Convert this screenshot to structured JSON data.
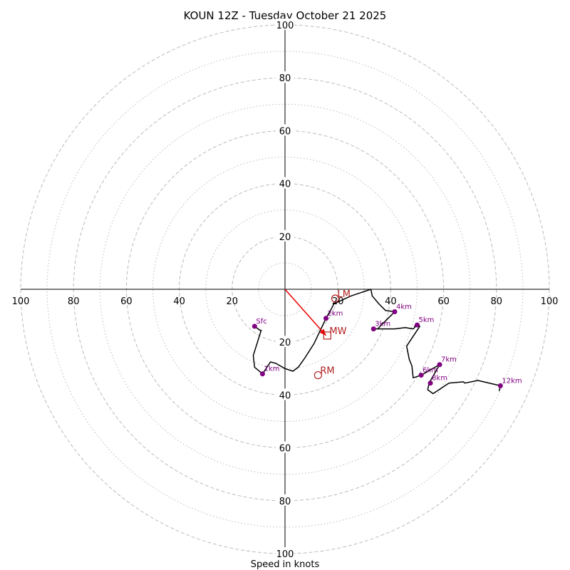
{
  "chart_data": {
    "type": "hodograph",
    "title": "KOUN 12Z - Tuesday October 21 2025",
    "xlabel": "Speed in knots",
    "units": "knots",
    "max_speed": 100,
    "ring_major": [
      20,
      40,
      60,
      80,
      100
    ],
    "ring_minor": [
      10,
      30,
      50,
      70,
      90
    ],
    "x_ticks": [
      "100",
      "80",
      "60",
      "40",
      "20",
      "20",
      "40",
      "60",
      "80",
      "100"
    ],
    "x_tick_values": [
      -100,
      -80,
      -60,
      -40,
      -20,
      20,
      40,
      60,
      80,
      100
    ],
    "y_ticks": [
      "100",
      "80",
      "60",
      "40",
      "20",
      "20",
      "40",
      "60",
      "80",
      "100"
    ],
    "y_tick_values": [
      100,
      80,
      60,
      40,
      20,
      -20,
      -40,
      -60,
      -80,
      -100
    ],
    "profile": {
      "color": "#000000",
      "u": [
        -11.5,
        -9.5,
        -9.0,
        -12.0,
        -11.5,
        -8.5,
        -5.5,
        -3.5,
        0.0,
        3.0,
        5.0,
        7.5,
        11.0,
        15.5,
        17.5,
        18.5,
        25.0,
        32.5,
        33.0,
        35.5,
        38.0,
        41.5,
        38.5,
        35.0,
        33.5,
        35.0,
        41.5,
        45.5,
        48.5,
        50.0,
        49.0,
        51.0,
        46.0,
        47.0,
        48.0,
        48.5,
        51.5,
        55.0,
        58.5,
        54.5,
        54.0,
        56.0,
        62.0,
        67.5,
        68.0,
        73.0,
        81.5,
        81.0
      ],
      "v": [
        -14.0,
        -15.5,
        -15.5,
        -25.0,
        -29.5,
        -32.0,
        -27.5,
        -28.0,
        -30.0,
        -31.0,
        -29.5,
        -26.0,
        -20.5,
        -11.0,
        -7.5,
        -5.5,
        -2.5,
        0.0,
        -2.5,
        -5.5,
        -8.0,
        -8.5,
        -11.5,
        -15.0,
        -15.0,
        -15.0,
        -15.0,
        -14.5,
        -15.0,
        -13.5,
        -14.0,
        -14.0,
        -21.5,
        -26.5,
        -29.0,
        -33.5,
        -32.5,
        -30.5,
        -28.5,
        -35.5,
        -38.0,
        -39.5,
        -35.5,
        -35.0,
        -35.5,
        -34.5,
        -36.5,
        -38.5
      ]
    },
    "height_markers": [
      {
        "label": "Sfc",
        "u": -11.5,
        "v": -14.0
      },
      {
        "label": "1km",
        "u": -8.5,
        "v": -32.0
      },
      {
        "label": "2km",
        "u": 15.5,
        "v": -11.0
      },
      {
        "label": "3km",
        "u": 33.5,
        "v": -15.0
      },
      {
        "label": "4km",
        "u": 41.5,
        "v": -8.5
      },
      {
        "label": "5km",
        "u": 50.0,
        "v": -13.5
      },
      {
        "label": "6km",
        "u": 51.5,
        "v": -32.5
      },
      {
        "label": "7km",
        "u": 58.5,
        "v": -28.5
      },
      {
        "label": "8km",
        "u": 55.0,
        "v": -35.5
      },
      {
        "label": "12km",
        "u": 81.5,
        "v": -36.5
      }
    ],
    "motion_markers": [
      {
        "label": "LM",
        "u": 19.0,
        "v": -3.5,
        "shape": "circle"
      },
      {
        "label": "MW",
        "u": 16.0,
        "v": -17.5,
        "shape": "square"
      },
      {
        "label": "RM",
        "u": 12.5,
        "v": -32.5,
        "shape": "circle"
      }
    ],
    "shear_vector": {
      "from_u": 0,
      "from_v": 0,
      "to_u": 15.5,
      "to_v": -17.5,
      "color": "#ee0000"
    },
    "colors": {
      "grid": "#bbbbbb",
      "marker": "#800080",
      "motion": "#b22222",
      "axis": "#000000"
    }
  }
}
